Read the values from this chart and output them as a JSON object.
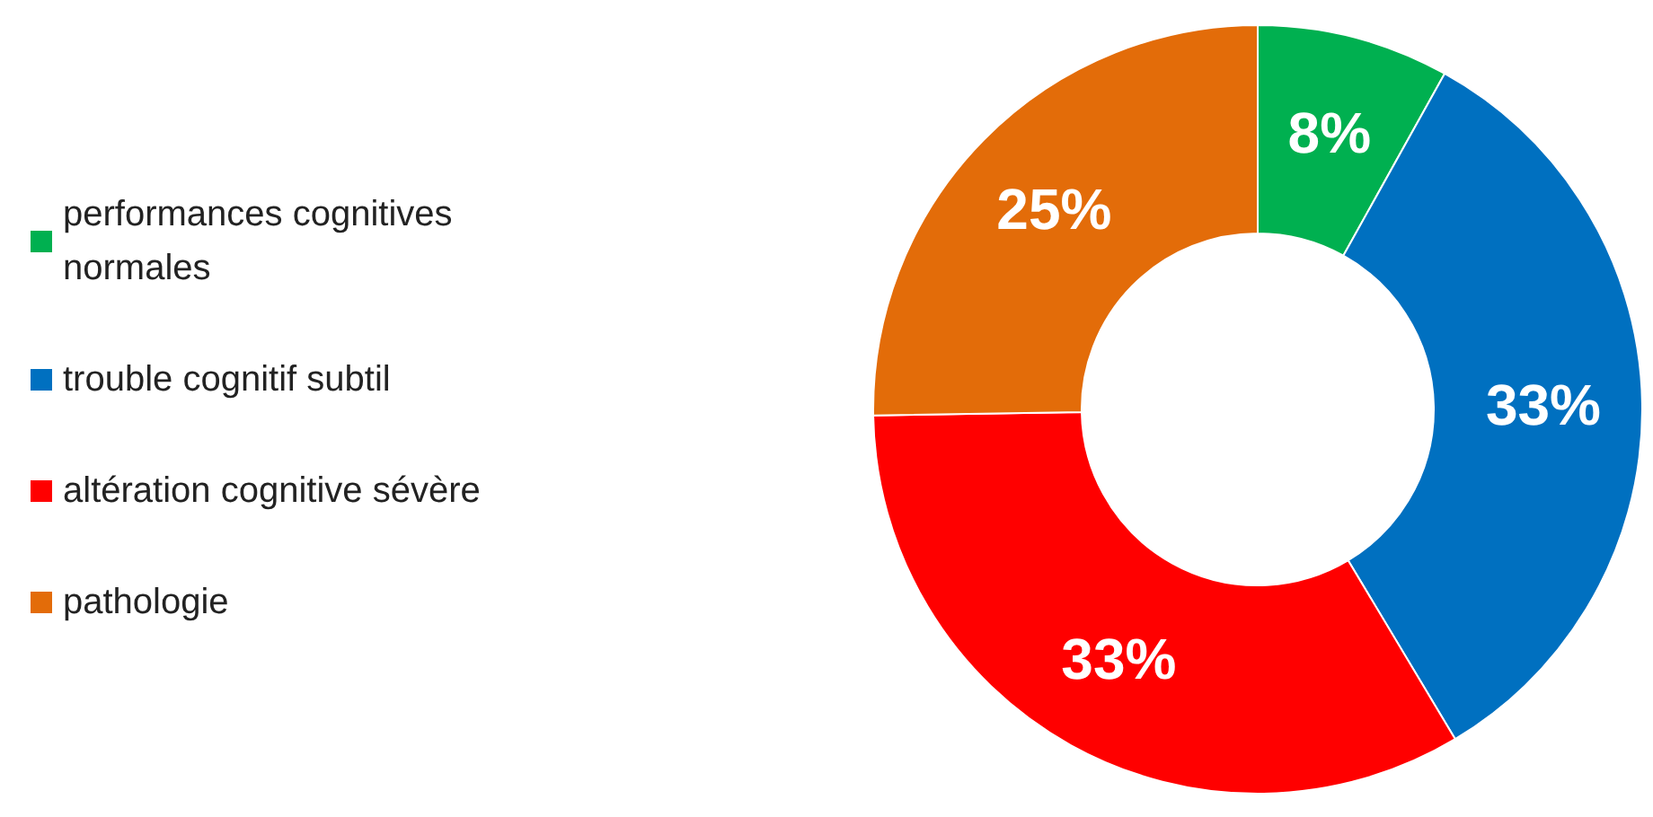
{
  "chart_data": {
    "type": "donut",
    "categories": [
      "performances cognitives normales",
      "trouble cognitif subtil",
      "altération cognitive sévère",
      "pathologie"
    ],
    "values": [
      8,
      33,
      33,
      25
    ],
    "colors": [
      "#00b050",
      "#0070c0",
      "#ff0000",
      "#e36c09"
    ],
    "value_labels": [
      "8%",
      "33%",
      "33%",
      "25%"
    ],
    "legend": "left"
  }
}
